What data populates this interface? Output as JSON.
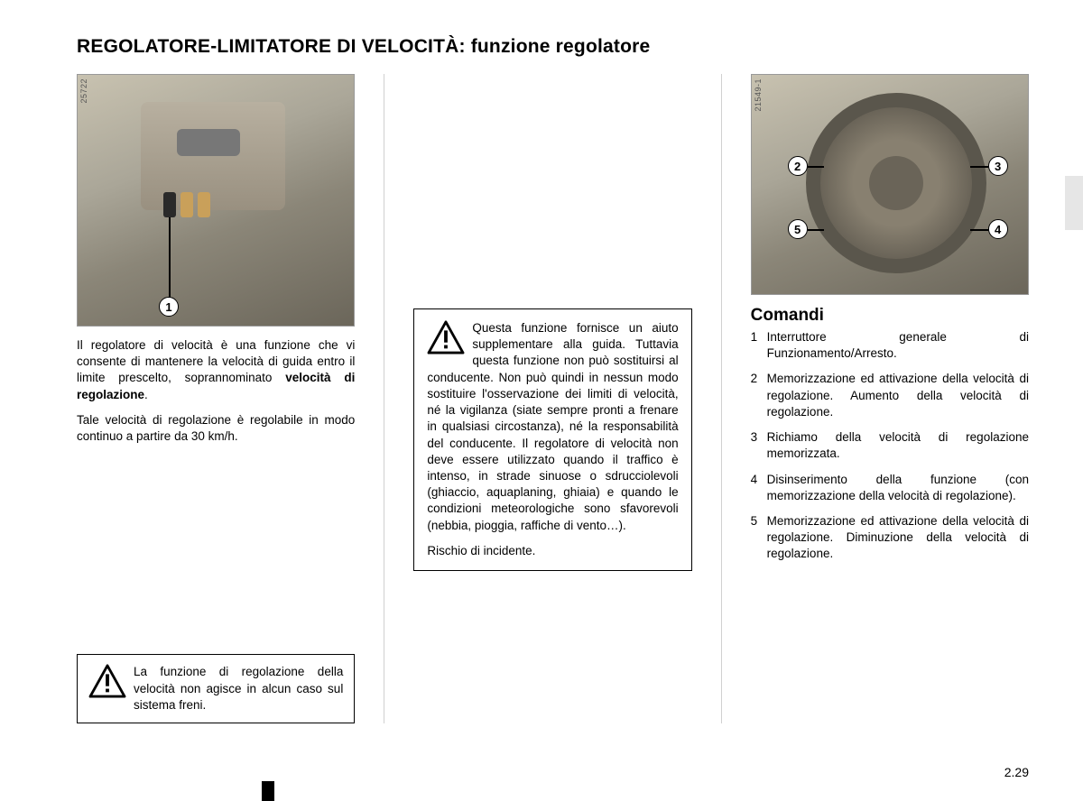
{
  "title": "REGOLATORE-LIMITATORE DI VELOCITÀ: funzione regolatore",
  "left": {
    "photo_tag": "25722",
    "callout_1": "1",
    "para1_a": "Il regolatore di velocità è una funzione che vi consente di mantenere la velocità di guida entro il limite prescelto, soprannominato ",
    "para1_b": "velocità di regolazione",
    "para1_c": ".",
    "para2": "Tale velocità di regolazione è regolabile in modo continuo a partire da 30 km/h.",
    "warn": "La funzione di regolazione della velocità non agisce in alcun caso sul sistema freni."
  },
  "mid": {
    "warn1": "Questa funzione fornisce un aiuto supplementare alla guida. Tuttavia questa funzione non può sostituirsi al conducente. Non può quindi in nessun modo sostituire l'osservazione dei limiti di velocità, né la vigilanza (siate sempre pronti a frenare in qualsiasi circostanza), né la responsabilità del conducente. Il regolatore di velocità non deve essere utilizzato quando il traffico è intenso, in strade sinuose o sdrucciolevoli (ghiaccio, aquaplaning, ghiaia) e quando le condizioni meteorologiche sono sfavorevoli (nebbia, pioggia, raffiche di vento…).",
    "warn2": "Rischio di incidente."
  },
  "right": {
    "photo_tag": "21549-1",
    "c2": "2",
    "c3": "3",
    "c4": "4",
    "c5": "5",
    "subhead": "Comandi",
    "items": [
      {
        "n": "1",
        "t": "Interruttore generale di Funzionamento/Arresto.",
        "spaced": true
      },
      {
        "n": "2",
        "t": "Memorizzazione ed attivazione della velocità di regolazione. Aumento della velocità di regolazione."
      },
      {
        "n": "3",
        "t": "Richiamo della velocità di regolazione memorizzata."
      },
      {
        "n": "4",
        "t": "Disinserimento della funzione (con memorizzazione della velocità di regolazione)."
      },
      {
        "n": "5",
        "t": "Memorizzazione ed attivazione della velocità di regolazione. Diminuzione della velocità di regolazione."
      }
    ]
  },
  "page_num": "2.29"
}
